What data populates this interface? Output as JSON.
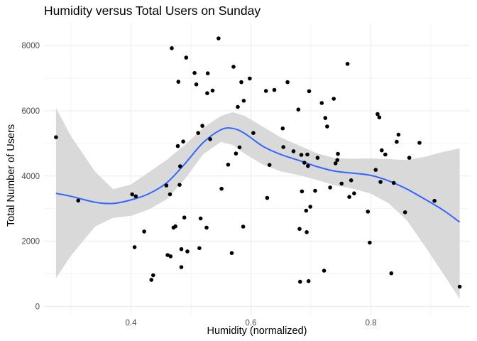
{
  "chart_data": {
    "type": "scatter",
    "title": "Humidity versus Total Users on Sunday",
    "xlabel": "Humidity (normalized)",
    "ylabel": "Total Number of Users",
    "xlim": [
      0.255,
      0.965
    ],
    "ylim": [
      -250,
      8700
    ],
    "x_ticks": [
      {
        "value": 0.4,
        "label": "0.4"
      },
      {
        "value": 0.6,
        "label": "0.6"
      },
      {
        "value": 0.8,
        "label": "0.8"
      }
    ],
    "y_ticks": [
      {
        "value": 0,
        "label": "0"
      },
      {
        "value": 2000,
        "label": "2000"
      },
      {
        "value": 4000,
        "label": "4000"
      },
      {
        "value": 6000,
        "label": "6000"
      },
      {
        "value": 8000,
        "label": "8000"
      }
    ],
    "grid": true,
    "colors": {
      "points": "#000000",
      "smooth_line": "#3366ff",
      "confidence_band": "#d9d9d9",
      "grid": "#ebebeb"
    },
    "points": [
      [
        0.275,
        5190
      ],
      [
        0.312,
        3250
      ],
      [
        0.402,
        3440
      ],
      [
        0.406,
        1820
      ],
      [
        0.408,
        3380
      ],
      [
        0.422,
        2300
      ],
      [
        0.434,
        820
      ],
      [
        0.437,
        960
      ],
      [
        0.459,
        3710
      ],
      [
        0.461,
        1580
      ],
      [
        0.465,
        3440
      ],
      [
        0.466,
        1540
      ],
      [
        0.468,
        7920
      ],
      [
        0.471,
        2420
      ],
      [
        0.474,
        2460
      ],
      [
        0.478,
        4920
      ],
      [
        0.479,
        6890
      ],
      [
        0.481,
        3730
      ],
      [
        0.482,
        4300
      ],
      [
        0.484,
        1760
      ],
      [
        0.484,
        1210
      ],
      [
        0.487,
        5060
      ],
      [
        0.489,
        2730
      ],
      [
        0.492,
        7630
      ],
      [
        0.494,
        1690
      ],
      [
        0.506,
        7160
      ],
      [
        0.509,
        6810
      ],
      [
        0.512,
        5320
      ],
      [
        0.514,
        1790
      ],
      [
        0.516,
        2700
      ],
      [
        0.519,
        5540
      ],
      [
        0.526,
        2420
      ],
      [
        0.527,
        6540
      ],
      [
        0.528,
        7150
      ],
      [
        0.532,
        5130
      ],
      [
        0.536,
        6620
      ],
      [
        0.546,
        8220
      ],
      [
        0.551,
        3610
      ],
      [
        0.562,
        4350
      ],
      [
        0.568,
        1640
      ],
      [
        0.571,
        7350
      ],
      [
        0.575,
        4690
      ],
      [
        0.578,
        6120
      ],
      [
        0.581,
        4880
      ],
      [
        0.584,
        6880
      ],
      [
        0.587,
        2450
      ],
      [
        0.588,
        6310
      ],
      [
        0.598,
        6990
      ],
      [
        0.604,
        5320
      ],
      [
        0.625,
        6610
      ],
      [
        0.627,
        3330
      ],
      [
        0.631,
        4340
      ],
      [
        0.639,
        6640
      ],
      [
        0.653,
        5460
      ],
      [
        0.654,
        4890
      ],
      [
        0.661,
        6880
      ],
      [
        0.671,
        4760
      ],
      [
        0.679,
        6040
      ],
      [
        0.681,
        2380
      ],
      [
        0.682,
        760
      ],
      [
        0.684,
        4650
      ],
      [
        0.685,
        3530
      ],
      [
        0.689,
        4410
      ],
      [
        0.692,
        2940
      ],
      [
        0.693,
        2280
      ],
      [
        0.694,
        4660
      ],
      [
        0.695,
        4310
      ],
      [
        0.696,
        780
      ],
      [
        0.697,
        6600
      ],
      [
        0.699,
        3060
      ],
      [
        0.707,
        3550
      ],
      [
        0.711,
        4560
      ],
      [
        0.718,
        6240
      ],
      [
        0.722,
        1100
      ],
      [
        0.724,
        5780
      ],
      [
        0.727,
        5520
      ],
      [
        0.732,
        3650
      ],
      [
        0.738,
        6370
      ],
      [
        0.741,
        4390
      ],
      [
        0.744,
        4490
      ],
      [
        0.745,
        4680
      ],
      [
        0.751,
        3770
      ],
      [
        0.761,
        7440
      ],
      [
        0.764,
        3360
      ],
      [
        0.767,
        3870
      ],
      [
        0.772,
        3470
      ],
      [
        0.795,
        2910
      ],
      [
        0.798,
        1960
      ],
      [
        0.808,
        4190
      ],
      [
        0.811,
        5900
      ],
      [
        0.814,
        5800
      ],
      [
        0.816,
        3820
      ],
      [
        0.818,
        4790
      ],
      [
        0.824,
        4660
      ],
      [
        0.834,
        1020
      ],
      [
        0.838,
        3790
      ],
      [
        0.843,
        5050
      ],
      [
        0.846,
        5270
      ],
      [
        0.857,
        2890
      ],
      [
        0.864,
        4560
      ],
      [
        0.881,
        5020
      ],
      [
        0.906,
        3240
      ],
      [
        0.948,
        610
      ]
    ],
    "smooth": {
      "method": "loess",
      "x": [
        0.275,
        0.3,
        0.34,
        0.37,
        0.4,
        0.43,
        0.46,
        0.49,
        0.52,
        0.55,
        0.57,
        0.59,
        0.62,
        0.65,
        0.68,
        0.71,
        0.74,
        0.77,
        0.8,
        0.83,
        0.86,
        0.89,
        0.92,
        0.948
      ],
      "y": [
        3470,
        3380,
        3200,
        3160,
        3270,
        3460,
        3800,
        4380,
        5020,
        5420,
        5460,
        5300,
        4910,
        4660,
        4480,
        4290,
        4150,
        4090,
        4020,
        3850,
        3600,
        3290,
        2960,
        2590
      ],
      "lower": [
        870,
        1560,
        2450,
        2720,
        2780,
        2980,
        3290,
        3910,
        4660,
        5050,
        4950,
        4680,
        4350,
        4140,
        4030,
        3880,
        3720,
        3610,
        3460,
        3160,
        2640,
        1850,
        1020,
        240
      ],
      "upper": [
        6090,
        5220,
        4140,
        3600,
        3740,
        4120,
        4500,
        4960,
        5470,
        5840,
        5960,
        5840,
        5510,
        5180,
        4940,
        4700,
        4550,
        4530,
        4540,
        4520,
        4490,
        4590,
        4740,
        4850
      ]
    }
  }
}
